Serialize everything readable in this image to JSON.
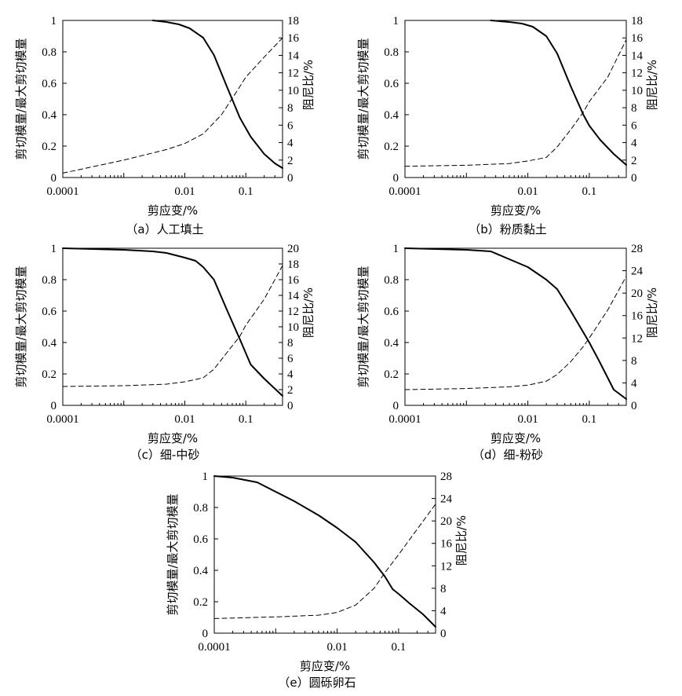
{
  "chart_data": [
    {
      "type": "line",
      "caption": "（a）人工填土",
      "xlabel": "剪应变/%",
      "ylabel": "剪切模量/最大剪切模量",
      "y2label": "阻尼比/%",
      "xscale": "log",
      "xlim": [
        0.0001,
        0.4
      ],
      "x_ticks": [
        "0.0001",
        "0.01",
        "0.1"
      ],
      "ylim": [
        0,
        1
      ],
      "y_ticks": [
        "0",
        "0.2",
        "0.4",
        "0.6",
        "0.8",
        "1"
      ],
      "y2lim": [
        0,
        18
      ],
      "y2_ticks": [
        "0",
        "2",
        "4",
        "6",
        "8",
        "10",
        "12",
        "14",
        "16",
        "18"
      ],
      "grid": false,
      "series": [
        {
          "style": "solid",
          "axis": "left",
          "x": [
            0.003,
            0.005,
            0.008,
            0.012,
            0.02,
            0.03,
            0.05,
            0.08,
            0.12,
            0.2,
            0.3,
            0.4
          ],
          "y": [
            1.0,
            0.99,
            0.975,
            0.95,
            0.89,
            0.78,
            0.57,
            0.38,
            0.26,
            0.15,
            0.09,
            0.06
          ]
        },
        {
          "style": "dashed",
          "axis": "right",
          "x": [
            0.0001,
            0.001,
            0.005,
            0.01,
            0.02,
            0.04,
            0.07,
            0.1,
            0.2,
            0.4
          ],
          "y": [
            0.5,
            2.0,
            3.2,
            3.9,
            5.0,
            7.2,
            9.8,
            11.5,
            13.8,
            16.0
          ]
        }
      ]
    },
    {
      "type": "line",
      "caption": "（b）粉质黏土",
      "xlabel": "剪应变/%",
      "ylabel": "剪切模量/最大剪切模量",
      "y2label": "阻尼比/%",
      "xscale": "log",
      "xlim": [
        0.0001,
        0.4
      ],
      "x_ticks": [
        "0.0001",
        "0.01",
        "0.1"
      ],
      "ylim": [
        0,
        1
      ],
      "y_ticks": [
        "0",
        "0.2",
        "0.4",
        "0.6",
        "0.8",
        "1"
      ],
      "y2lim": [
        0,
        18
      ],
      "y2_ticks": [
        "0",
        "2",
        "4",
        "6",
        "8",
        "10",
        "12",
        "14",
        "16",
        "18"
      ],
      "grid": false,
      "series": [
        {
          "style": "solid",
          "axis": "left",
          "x": [
            0.0025,
            0.005,
            0.008,
            0.012,
            0.02,
            0.03,
            0.05,
            0.08,
            0.1,
            0.15,
            0.25,
            0.4
          ],
          "y": [
            1.0,
            0.99,
            0.98,
            0.96,
            0.9,
            0.79,
            0.58,
            0.4,
            0.33,
            0.24,
            0.15,
            0.08
          ]
        },
        {
          "style": "dashed",
          "axis": "right",
          "x": [
            0.0001,
            0.001,
            0.005,
            0.01,
            0.02,
            0.03,
            0.05,
            0.08,
            0.1,
            0.2,
            0.4
          ],
          "y": [
            1.3,
            1.4,
            1.6,
            1.9,
            2.3,
            3.5,
            5.5,
            7.5,
            8.7,
            11.5,
            15.8
          ]
        }
      ]
    },
    {
      "type": "line",
      "caption": "（c）细-中砂",
      "xlabel": "剪应变/%",
      "ylabel": "剪切模量/最大剪切模量",
      "y2label": "阻尼比/%",
      "xscale": "log",
      "xlim": [
        0.0001,
        0.4
      ],
      "x_ticks": [
        "0.0001",
        "0.01",
        "0.1"
      ],
      "ylim": [
        0,
        1
      ],
      "y_ticks": [
        "0",
        "0.2",
        "0.4",
        "0.6",
        "0.8",
        "1"
      ],
      "y2lim": [
        0,
        20
      ],
      "y2_ticks": [
        "0",
        "2",
        "4",
        "6",
        "8",
        "10",
        "12",
        "14",
        "16",
        "18",
        "20"
      ],
      "grid": false,
      "series": [
        {
          "style": "solid",
          "axis": "left",
          "x": [
            0.0001,
            0.001,
            0.003,
            0.005,
            0.01,
            0.015,
            0.02,
            0.03,
            0.05,
            0.08,
            0.12,
            0.2,
            0.4
          ],
          "y": [
            1.0,
            0.99,
            0.98,
            0.97,
            0.94,
            0.92,
            0.88,
            0.8,
            0.6,
            0.42,
            0.26,
            0.17,
            0.06
          ]
        },
        {
          "style": "dashed",
          "axis": "right",
          "x": [
            0.0001,
            0.001,
            0.005,
            0.01,
            0.02,
            0.03,
            0.05,
            0.08,
            0.1,
            0.2,
            0.4
          ],
          "y": [
            2.4,
            2.5,
            2.7,
            3.0,
            3.5,
            4.6,
            6.8,
            8.8,
            10.2,
            13.5,
            17.8
          ]
        }
      ]
    },
    {
      "type": "line",
      "caption": "（d）细-粉砂",
      "xlabel": "剪应变/%",
      "ylabel": "剪切模量/最大剪切模量",
      "y2label": "阻尼比/%",
      "xscale": "log",
      "xlim": [
        0.0001,
        0.4
      ],
      "x_ticks": [
        "0.0001",
        "0.01",
        "0.1"
      ],
      "ylim": [
        0,
        1
      ],
      "y_ticks": [
        "0",
        "0.2",
        "0.4",
        "0.6",
        "0.8",
        "1"
      ],
      "y2lim": [
        0,
        28
      ],
      "y2_ticks": [
        "0",
        "4",
        "8",
        "12",
        "16",
        "20",
        "24",
        "28"
      ],
      "grid": false,
      "series": [
        {
          "style": "solid",
          "axis": "left",
          "x": [
            0.0001,
            0.001,
            0.0025,
            0.005,
            0.01,
            0.02,
            0.03,
            0.05,
            0.1,
            0.15,
            0.25,
            0.4
          ],
          "y": [
            1.0,
            0.99,
            0.98,
            0.93,
            0.88,
            0.8,
            0.74,
            0.6,
            0.4,
            0.27,
            0.1,
            0.04
          ]
        },
        {
          "style": "dashed",
          "axis": "right",
          "x": [
            0.0001,
            0.001,
            0.005,
            0.01,
            0.02,
            0.03,
            0.05,
            0.08,
            0.1,
            0.2,
            0.4
          ],
          "y": [
            2.8,
            3.0,
            3.3,
            3.6,
            4.3,
            5.5,
            7.8,
            10.5,
            12.0,
            17.0,
            23.0
          ]
        }
      ]
    },
    {
      "type": "line",
      "caption": "（e）圆砾卵石",
      "xlabel": "剪应变/%",
      "ylabel": "剪切模量/最大剪切模量",
      "y2label": "阻尼比/%",
      "xscale": "log",
      "xlim": [
        0.0001,
        0.4
      ],
      "x_ticks": [
        "0.0001",
        "0.01",
        "0.1"
      ],
      "ylim": [
        0,
        1
      ],
      "y_ticks": [
        "0",
        "0.2",
        "0.4",
        "0.6",
        "0.8",
        "1"
      ],
      "y2lim": [
        0,
        28
      ],
      "y2_ticks": [
        "0",
        "4",
        "8",
        "12",
        "16",
        "20",
        "24",
        "28"
      ],
      "grid": false,
      "series": [
        {
          "style": "solid",
          "axis": "left",
          "x": [
            0.0001,
            0.0002,
            0.0005,
            0.001,
            0.002,
            0.005,
            0.01,
            0.02,
            0.04,
            0.06,
            0.08,
            0.1,
            0.15,
            0.25,
            0.4
          ],
          "y": [
            1.0,
            0.99,
            0.96,
            0.9,
            0.84,
            0.75,
            0.67,
            0.58,
            0.45,
            0.36,
            0.28,
            0.25,
            0.19,
            0.12,
            0.04
          ]
        },
        {
          "style": "dashed",
          "axis": "right",
          "x": [
            0.0001,
            0.001,
            0.005,
            0.01,
            0.02,
            0.04,
            0.06,
            0.1,
            0.2,
            0.4
          ],
          "y": [
            2.6,
            2.9,
            3.2,
            3.7,
            5.0,
            8.0,
            10.8,
            14.0,
            18.5,
            23.0
          ]
        }
      ]
    }
  ]
}
